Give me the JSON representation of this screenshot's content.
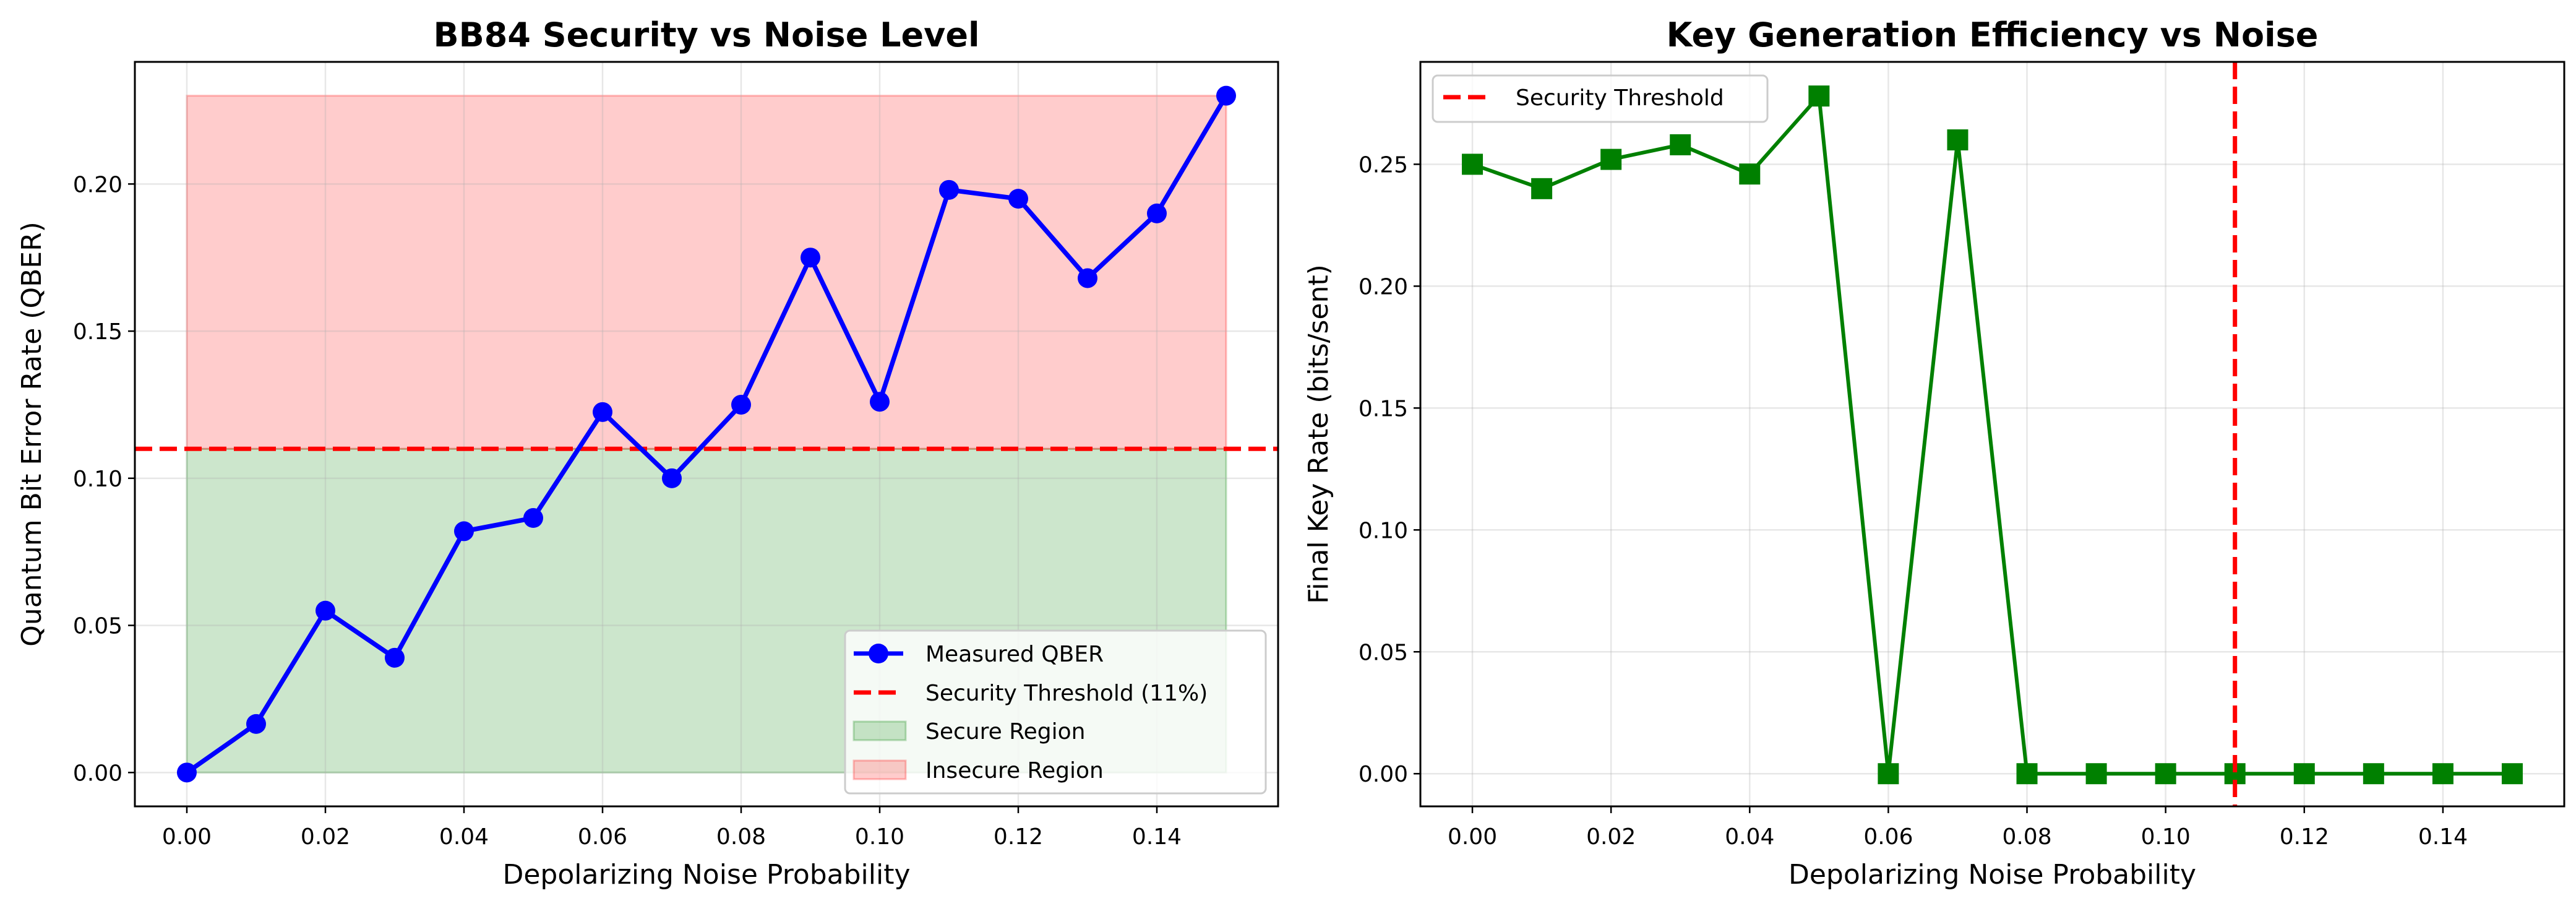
{
  "chart_data": [
    {
      "type": "line",
      "title": "BB84 Security vs Noise Level",
      "xlabel": "Depolarizing Noise Probability",
      "ylabel": "Quantum Bit Error Rate (QBER)",
      "xlim": [
        -0.0075,
        0.1575
      ],
      "ylim": [
        -0.0115,
        0.2415
      ],
      "xticks": [
        0,
        0.02,
        0.04,
        0.06,
        0.08,
        0.1,
        0.12,
        0.14
      ],
      "xtick_labels": [
        "0.00",
        "0.02",
        "0.04",
        "0.06",
        "0.08",
        "0.10",
        "0.12",
        "0.14"
      ],
      "yticks": [
        0,
        0.05,
        0.1,
        0.15,
        0.2
      ],
      "ytick_labels": [
        "0.00",
        "0.05",
        "0.10",
        "0.15",
        "0.20"
      ],
      "grid": true,
      "legend_placement": "lower-right",
      "x": [
        0,
        0.01,
        0.02,
        0.03,
        0.04,
        0.05,
        0.06,
        0.07,
        0.08,
        0.09,
        0.1,
        0.11,
        0.12,
        0.13,
        0.14,
        0.15
      ],
      "series": [
        {
          "name": "Measured QBER",
          "values": [
            0,
            0.0165,
            0.055,
            0.039,
            0.082,
            0.0865,
            0.1225,
            0.1,
            0.125,
            0.175,
            0.126,
            0.198,
            0.195,
            0.168,
            0.19,
            0.23
          ],
          "color": "#0000ff",
          "marker": "circle"
        }
      ],
      "threshold": {
        "name": "Security Threshold (11%)",
        "value": 0.11,
        "color": "#ff0000",
        "orientation": "horizontal"
      },
      "regions": [
        {
          "name": "Secure Region",
          "from": 0,
          "to": 0.11,
          "color": "#008000"
        },
        {
          "name": "Insecure Region",
          "from": 0.11,
          "to": 0.23,
          "color": "#ff0000"
        }
      ]
    },
    {
      "type": "line",
      "title": "Key Generation Efficiency vs Noise",
      "xlabel": "Depolarizing Noise Probability",
      "ylabel": "Final Key Rate (bits/sent)",
      "xlim": [
        -0.0075,
        0.1575
      ],
      "ylim": [
        -0.0134,
        0.292
      ],
      "xticks": [
        0,
        0.02,
        0.04,
        0.06,
        0.08,
        0.1,
        0.12,
        0.14
      ],
      "xtick_labels": [
        "0.00",
        "0.02",
        "0.04",
        "0.06",
        "0.08",
        "0.10",
        "0.12",
        "0.14"
      ],
      "yticks": [
        0,
        0.05,
        0.1,
        0.15,
        0.2,
        0.25
      ],
      "ytick_labels": [
        "0.00",
        "0.05",
        "0.10",
        "0.15",
        "0.20",
        "0.25"
      ],
      "grid": true,
      "legend_placement": "top-left",
      "x": [
        0,
        0.01,
        0.02,
        0.03,
        0.04,
        0.05,
        0.06,
        0.07,
        0.08,
        0.09,
        0.1,
        0.11,
        0.12,
        0.13,
        0.14,
        0.15
      ],
      "series": [
        {
          "values": [
            0.25,
            0.24,
            0.252,
            0.258,
            0.246,
            0.278,
            0,
            0.26,
            0,
            0,
            0,
            0,
            0,
            0,
            0,
            0
          ],
          "color": "#008000",
          "marker": "square"
        }
      ],
      "threshold": {
        "name": "Security Threshold",
        "value": 0.11,
        "color": "#ff0000",
        "orientation": "vertical"
      }
    }
  ]
}
